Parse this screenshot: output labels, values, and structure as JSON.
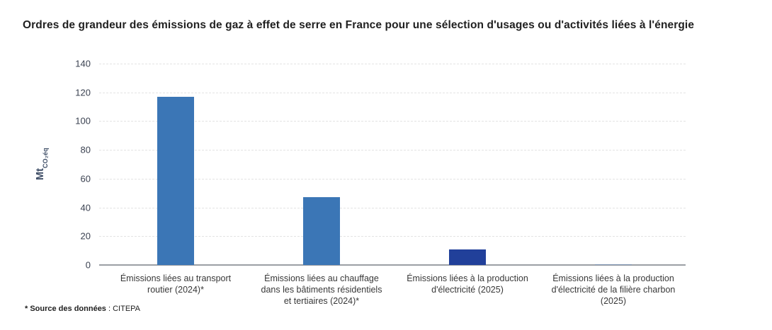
{
  "chart": {
    "title": "Ordres de grandeur des émissions de gaz à effet de serre en France pour une sélection d'usages ou d'activités liées à l'énergie",
    "source_label": "* Source des données",
    "source_value": " : CITEPA"
  },
  "chart_data": {
    "type": "bar",
    "title": "Ordres de grandeur des émissions de gaz à effet de serre en France pour une sélection d'usages ou d'activités liées à l'énergie",
    "ylabel": "Mt CO₂éq",
    "ylabel_main": "Mt",
    "ylabel_sub": "CO₂éq",
    "xlabel": "",
    "ylim": [
      0,
      140
    ],
    "yticks": [
      0,
      20,
      40,
      60,
      80,
      100,
      120,
      140
    ],
    "grid": "horizontal-dashed",
    "legend": "none",
    "categories": [
      "Émissions liées au transport\nroutier (2024)*",
      "Émissions liées au chauffage\ndans les bâtiments résidentiels\net tertiaires (2024)*",
      "Émissions liées à la production\nd'électricité (2025)",
      "Émissions liées à la production\nd'électricité de la filière charbon (2025)"
    ],
    "values": [
      117,
      47,
      11,
      0.6
    ],
    "bar_colors": [
      "#3b76b6",
      "#3b76b6",
      "#21409a",
      "#8095b3"
    ],
    "source": "* Source des données : CITEPA",
    "colors": {
      "grid": "#e3e3e3",
      "axis": "#9b9fa4",
      "tick_text": "#3a4150",
      "y_title_text": "#3e4d66",
      "title_text": "#212121",
      "category_text": "#383838"
    }
  }
}
